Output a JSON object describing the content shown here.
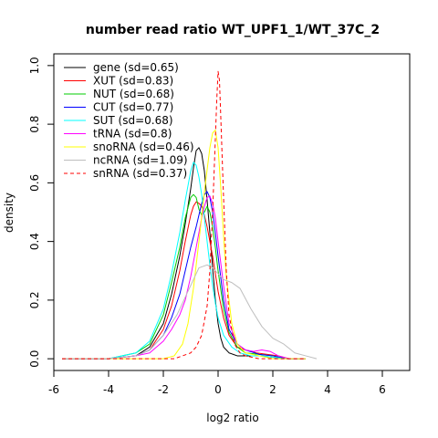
{
  "chart_data": {
    "type": "line",
    "title": "number read ratio WT_UPF1_1/WT_37C_2",
    "xlabel": "log2 ratio",
    "ylabel": "density",
    "xlim": [
      -6.0,
      7.0
    ],
    "ylim": [
      -0.04,
      1.04
    ],
    "x_ticks": [
      -6,
      -4,
      -2,
      0,
      2,
      4,
      6
    ],
    "x_tick_labels": [
      "-6",
      "-4",
      "-2",
      "0",
      "2",
      "4",
      "6"
    ],
    "y_ticks": [
      0.0,
      0.2,
      0.4,
      0.6,
      0.8,
      1.0
    ],
    "y_tick_labels": [
      "0.0",
      "0.2",
      "0.4",
      "0.6",
      "0.8",
      "1.0"
    ],
    "grid": false,
    "legend_position": "top-left",
    "series": [
      {
        "name": "gene (sd=0.65)",
        "color": "#000000",
        "dash": false,
        "x": [
          -5.7,
          -4,
          -3,
          -2.5,
          -2,
          -1.7,
          -1.4,
          -1.2,
          -1.0,
          -0.9,
          -0.8,
          -0.7,
          -0.6,
          -0.5,
          -0.4,
          -0.3,
          -0.2,
          -0.1,
          0.0,
          0.1,
          0.2,
          0.4,
          0.7,
          1.0,
          1.5,
          2.0,
          2.5,
          3.2
        ],
        "y": [
          0,
          0,
          0.01,
          0.04,
          0.12,
          0.22,
          0.35,
          0.46,
          0.58,
          0.65,
          0.71,
          0.72,
          0.7,
          0.64,
          0.54,
          0.43,
          0.31,
          0.2,
          0.12,
          0.07,
          0.04,
          0.02,
          0.01,
          0.01,
          0.01,
          0.005,
          0,
          0
        ]
      },
      {
        "name": "XUT (sd=0.83)",
        "color": "#ff0000",
        "dash": false,
        "x": [
          -5.7,
          -4,
          -3,
          -2.5,
          -2,
          -1.7,
          -1.4,
          -1.2,
          -1.0,
          -0.9,
          -0.8,
          -0.7,
          -0.6,
          -0.5,
          -0.4,
          -0.3,
          -0.2,
          -0.1,
          0.0,
          0.2,
          0.4,
          0.7,
          1.0,
          1.4,
          1.8,
          2.2,
          2.6,
          3.2
        ],
        "y": [
          0,
          0,
          0.01,
          0.03,
          0.1,
          0.18,
          0.3,
          0.4,
          0.49,
          0.52,
          0.535,
          0.53,
          0.52,
          0.49,
          0.45,
          0.4,
          0.35,
          0.29,
          0.23,
          0.14,
          0.08,
          0.04,
          0.03,
          0.02,
          0.015,
          0.01,
          0,
          0
        ]
      },
      {
        "name": "NUT (sd=0.68)",
        "color": "#00cc00",
        "dash": false,
        "x": [
          -5.7,
          -4,
          -3,
          -2.5,
          -2,
          -1.7,
          -1.4,
          -1.2,
          -1.0,
          -0.9,
          -0.8,
          -0.7,
          -0.6,
          -0.5,
          -0.4,
          -0.3,
          -0.2,
          -0.1,
          0.0,
          0.2,
          0.4,
          0.7,
          1.0,
          1.5,
          2.0,
          2.5,
          3.2
        ],
        "y": [
          0,
          0,
          0.02,
          0.05,
          0.15,
          0.26,
          0.38,
          0.48,
          0.55,
          0.56,
          0.55,
          0.51,
          0.49,
          0.5,
          0.52,
          0.5,
          0.45,
          0.38,
          0.3,
          0.17,
          0.09,
          0.04,
          0.02,
          0.015,
          0.01,
          0,
          0
        ]
      },
      {
        "name": "CUT (sd=0.77)",
        "color": "#0000ff",
        "dash": false,
        "x": [
          -5.7,
          -4,
          -3,
          -2.5,
          -2,
          -1.7,
          -1.4,
          -1.2,
          -1.0,
          -0.8,
          -0.7,
          -0.6,
          -0.5,
          -0.4,
          -0.3,
          -0.2,
          -0.1,
          0.0,
          0.2,
          0.4,
          0.7,
          1.0,
          1.5,
          2.0,
          2.5,
          3.2
        ],
        "y": [
          0,
          0,
          0.01,
          0.03,
          0.08,
          0.14,
          0.22,
          0.3,
          0.38,
          0.45,
          0.49,
          0.53,
          0.56,
          0.57,
          0.55,
          0.5,
          0.43,
          0.35,
          0.2,
          0.1,
          0.05,
          0.03,
          0.015,
          0.01,
          0,
          0
        ]
      },
      {
        "name": "SUT (sd=0.68)",
        "color": "#00ffff",
        "dash": false,
        "x": [
          -5.7,
          -4,
          -3,
          -2.5,
          -2,
          -1.7,
          -1.4,
          -1.2,
          -1.0,
          -0.9,
          -0.8,
          -0.7,
          -0.6,
          -0.5,
          -0.4,
          -0.3,
          -0.2,
          -0.1,
          0.0,
          0.2,
          0.5,
          0.8,
          1.2,
          1.6,
          2.0,
          2.5,
          3.2
        ],
        "y": [
          0,
          0,
          0.02,
          0.06,
          0.17,
          0.29,
          0.43,
          0.54,
          0.64,
          0.67,
          0.66,
          0.62,
          0.56,
          0.48,
          0.4,
          0.32,
          0.25,
          0.19,
          0.14,
          0.08,
          0.04,
          0.02,
          0.01,
          0.01,
          0.005,
          0,
          0
        ]
      },
      {
        "name": "tRNA (sd=0.8)",
        "color": "#ff00ff",
        "dash": false,
        "x": [
          -5.7,
          -4,
          -3,
          -2.5,
          -2,
          -1.7,
          -1.4,
          -1.2,
          -1.0,
          -0.8,
          -0.6,
          -0.5,
          -0.4,
          -0.3,
          -0.2,
          -0.1,
          0.0,
          0.2,
          0.4,
          0.7,
          1.0,
          1.3,
          1.6,
          1.9,
          2.2,
          2.6,
          3.2
        ],
        "y": [
          0,
          0,
          0.01,
          0.02,
          0.06,
          0.1,
          0.15,
          0.2,
          0.28,
          0.38,
          0.48,
          0.52,
          0.55,
          0.555,
          0.53,
          0.48,
          0.4,
          0.25,
          0.12,
          0.05,
          0.03,
          0.025,
          0.03,
          0.025,
          0.01,
          0,
          0
        ]
      },
      {
        "name": "snoRNA (sd=0.46)",
        "color": "#ffff00",
        "dash": false,
        "x": [
          -5.7,
          -2,
          -1.6,
          -1.3,
          -1.1,
          -0.9,
          -0.7,
          -0.5,
          -0.3,
          -0.2,
          -0.1,
          0.0,
          0.1,
          0.2,
          0.3,
          0.5,
          0.7,
          1.0,
          1.5,
          2.0,
          3.2
        ],
        "y": [
          0,
          0,
          0.01,
          0.05,
          0.12,
          0.24,
          0.4,
          0.57,
          0.72,
          0.77,
          0.78,
          0.72,
          0.58,
          0.42,
          0.28,
          0.12,
          0.05,
          0.02,
          0.01,
          0,
          0
        ]
      },
      {
        "name": "ncRNA (sd=1.09)",
        "color": "#bebebe",
        "dash": false,
        "x": [
          -5.7,
          -4,
          -3,
          -2.5,
          -2,
          -1.5,
          -1.0,
          -0.7,
          -0.4,
          -0.2,
          0.0,
          0.2,
          0.5,
          0.8,
          1.2,
          1.6,
          2.0,
          2.4,
          2.8,
          3.2,
          3.6
        ],
        "y": [
          0,
          0,
          0.01,
          0.03,
          0.08,
          0.15,
          0.25,
          0.31,
          0.32,
          0.31,
          0.29,
          0.27,
          0.26,
          0.24,
          0.17,
          0.11,
          0.07,
          0.05,
          0.02,
          0.01,
          0
        ]
      },
      {
        "name": "snRNA (sd=0.37)",
        "color": "#ff0000",
        "dash": true,
        "x": [
          -5.7,
          -1.6,
          -1.3,
          -1.0,
          -0.8,
          -0.6,
          -0.4,
          -0.3,
          -0.2,
          -0.1,
          -0.05,
          0.0,
          0.05,
          0.1,
          0.2,
          0.3,
          0.4,
          0.6,
          0.8,
          1.0,
          1.5,
          3.2
        ],
        "y": [
          0,
          0,
          0.01,
          0.02,
          0.04,
          0.08,
          0.18,
          0.3,
          0.5,
          0.75,
          0.88,
          0.98,
          0.95,
          0.82,
          0.55,
          0.3,
          0.15,
          0.05,
          0.02,
          0.01,
          0,
          0
        ]
      }
    ]
  }
}
